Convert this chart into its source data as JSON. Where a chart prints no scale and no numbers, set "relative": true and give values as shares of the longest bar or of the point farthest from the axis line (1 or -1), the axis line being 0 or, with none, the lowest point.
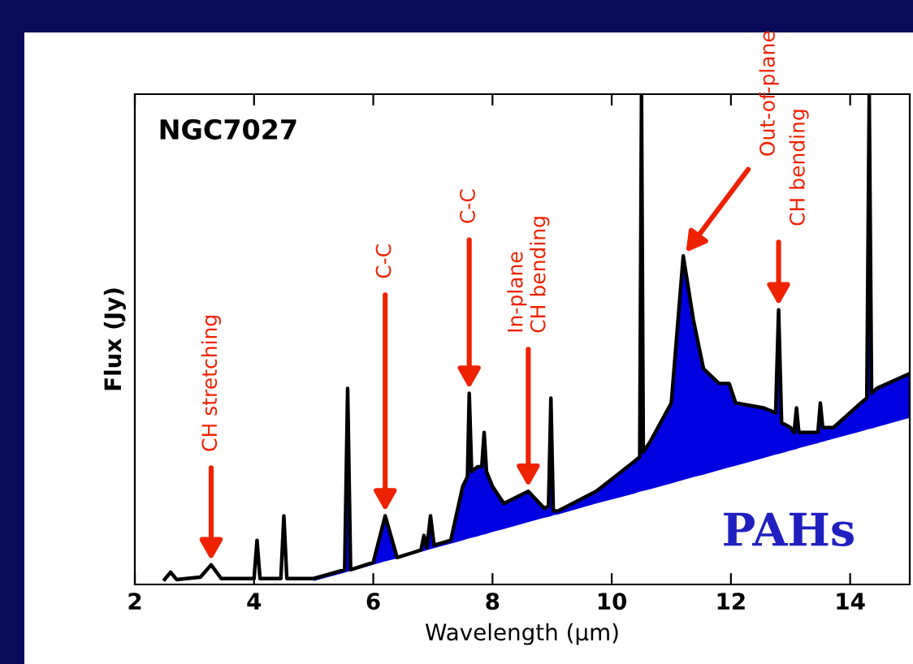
{
  "chart_data": {
    "type": "line",
    "title": "NGC7027",
    "xlabel": "Wavelength (μm)",
    "ylabel": "Flux (Jy)",
    "relative": true,
    "xlim": [
      2,
      15
    ],
    "xticks": [
      2,
      4,
      6,
      8,
      10,
      12,
      14
    ],
    "grid": false,
    "legend": false,
    "marker": "none",
    "line_style": "solid",
    "x": [
      2.5,
      2.6,
      2.7,
      3.1,
      3.28,
      3.45,
      4.0,
      4.05,
      4.1,
      4.45,
      4.5,
      4.55,
      5.0,
      5.52,
      5.57,
      5.62,
      6.0,
      6.2,
      6.4,
      6.8,
      6.85,
      6.9,
      6.96,
      7.02,
      7.3,
      7.5,
      7.58,
      7.61,
      7.65,
      7.75,
      7.82,
      7.86,
      7.9,
      8.0,
      8.19,
      8.6,
      8.87,
      8.94,
      8.98,
      9.02,
      9.1,
      9.74,
      10.37,
      10.47,
      10.5,
      10.53,
      10.64,
      11.0,
      11.2,
      11.37,
      11.54,
      11.8,
      11.97,
      12.08,
      12.55,
      12.75,
      12.8,
      12.85,
      13.0,
      13.06,
      13.1,
      13.14,
      13.36,
      13.46,
      13.5,
      13.54,
      13.72,
      14.18,
      14.28,
      14.32,
      14.36,
      14.45,
      15.0
    ],
    "series": [
      {
        "color": "#000000",
        "values": [
          0.01,
          0.025,
          0.01,
          0.015,
          0.04,
          0.012,
          0.012,
          0.09,
          0.012,
          0.012,
          0.14,
          0.012,
          0.012,
          0.03,
          0.4,
          0.03,
          0.045,
          0.14,
          0.055,
          0.07,
          0.1,
          0.075,
          0.14,
          0.08,
          0.09,
          0.2,
          0.22,
          0.39,
          0.23,
          0.24,
          0.24,
          0.31,
          0.23,
          0.2,
          0.165,
          0.19,
          0.155,
          0.16,
          0.38,
          0.15,
          0.15,
          0.19,
          0.25,
          0.26,
          1.0,
          0.27,
          0.29,
          0.37,
          0.67,
          0.54,
          0.44,
          0.41,
          0.41,
          0.37,
          0.36,
          0.35,
          0.56,
          0.33,
          0.32,
          0.31,
          0.36,
          0.31,
          0.31,
          0.31,
          0.37,
          0.32,
          0.32,
          0.37,
          0.38,
          1.0,
          0.39,
          0.4,
          0.43
        ],
        "lower": [
          null,
          null,
          null,
          null,
          null,
          null,
          null,
          null,
          null,
          null,
          null,
          null,
          0.007,
          0.024,
          0.026,
          0.027,
          0.04,
          0.047,
          0.053,
          0.067,
          0.068,
          0.07,
          0.072,
          0.074,
          0.083,
          0.09,
          0.093,
          0.094,
          0.095,
          0.098,
          0.101,
          0.102,
          0.103,
          0.107,
          0.113,
          0.127,
          0.136,
          0.138,
          0.139,
          0.141,
          0.143,
          0.165,
          0.185,
          0.189,
          0.19,
          0.191,
          0.194,
          0.206,
          0.213,
          0.219,
          0.224,
          0.233,
          0.239,
          0.242,
          0.258,
          0.265,
          0.266,
          0.268,
          0.273,
          0.275,
          0.276,
          0.278,
          0.285,
          0.288,
          0.29,
          0.291,
          0.297,
          0.312,
          0.316,
          0.317,
          0.318,
          0.321,
          0.34
        ],
        "upper": [
          null,
          null,
          null,
          null,
          null,
          null,
          null,
          null,
          null,
          null,
          null,
          null,
          0.012,
          0.03,
          0.4,
          0.03,
          0.045,
          0.14,
          0.055,
          0.07,
          0.1,
          0.075,
          0.14,
          0.08,
          0.09,
          0.2,
          0.22,
          0.39,
          0.23,
          0.24,
          0.24,
          0.31,
          0.23,
          0.2,
          0.165,
          0.19,
          0.155,
          0.16,
          0.38,
          0.15,
          0.15,
          0.19,
          0.25,
          0.26,
          1.0,
          0.27,
          0.29,
          0.37,
          0.67,
          0.54,
          0.44,
          0.41,
          0.41,
          0.37,
          0.36,
          0.35,
          0.56,
          0.33,
          0.32,
          0.31,
          0.36,
          0.31,
          0.31,
          0.31,
          0.37,
          0.32,
          0.32,
          0.37,
          0.38,
          1.0,
          0.39,
          0.4,
          0.43
        ]
      }
    ],
    "annotations": [
      {
        "text": "CH stretching",
        "x": 3.28,
        "y": 0.04
      },
      {
        "text": "C-C",
        "x": 6.2,
        "y": 0.14
      },
      {
        "text": "C-C",
        "x": 7.61,
        "y": 0.39
      },
      {
        "text": "In-plane\nCH bending",
        "x": 8.6,
        "y": 0.19
      },
      {
        "text": "Out-of-plane",
        "x": 11.2,
        "y": 0.67
      },
      {
        "text": "CH bending",
        "x": 12.8,
        "y": 0.56
      },
      "PAHs"
    ]
  }
}
